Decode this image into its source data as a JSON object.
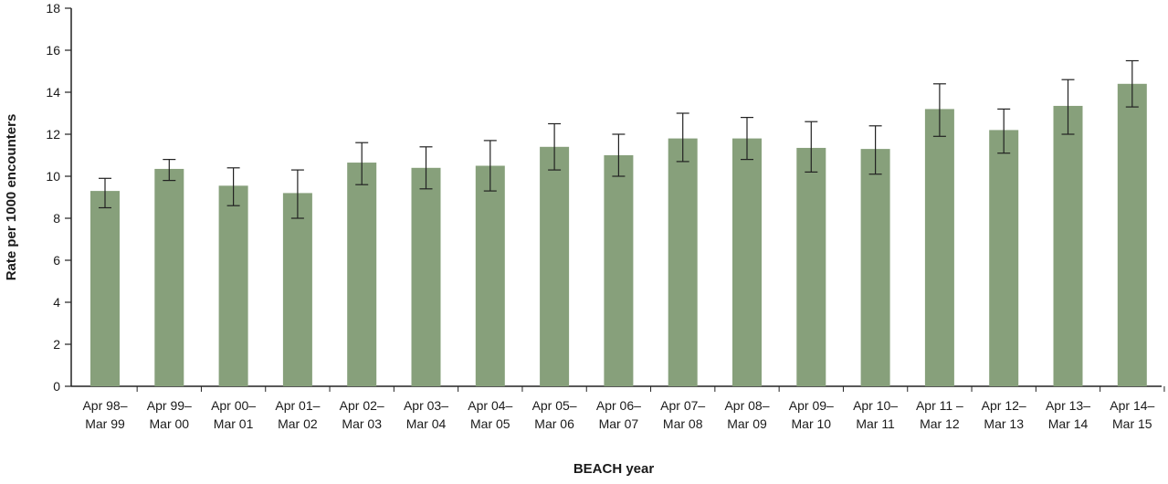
{
  "chart_data": {
    "type": "bar",
    "title": "",
    "xlabel": "BEACH year",
    "ylabel": "Rate per 1000 encounters",
    "ylim": [
      0,
      18
    ],
    "yticks": [
      "0",
      "2",
      "4",
      "6",
      "8",
      "10",
      "12",
      "14",
      "16",
      "18"
    ],
    "grid": false,
    "bar_color": "#87a07b",
    "categories": [
      [
        "Apr 98–",
        "Mar 99"
      ],
      [
        "Apr 99–",
        "Mar 00"
      ],
      [
        "Apr 00–",
        "Mar 01"
      ],
      [
        "Apr 01–",
        "Mar 02"
      ],
      [
        "Apr 02–",
        "Mar 03"
      ],
      [
        "Apr 03–",
        "Mar 04"
      ],
      [
        "Apr 04–",
        "Mar 05"
      ],
      [
        "Apr 05–",
        "Mar 06"
      ],
      [
        "Apr 06–",
        "Mar 07"
      ],
      [
        "Apr 07–",
        "Mar 08"
      ],
      [
        "Apr 08–",
        "Mar 09"
      ],
      [
        "Apr 09–",
        "Mar 10"
      ],
      [
        "Apr 10–",
        "Mar 11"
      ],
      [
        "Apr 11 –",
        "Mar 12"
      ],
      [
        "Apr 12–",
        "Mar 13"
      ],
      [
        "Apr  13–",
        "Mar 14"
      ],
      [
        "Apr 14–",
        "Mar 15"
      ]
    ],
    "values": [
      9.3,
      10.35,
      9.55,
      9.2,
      10.65,
      10.4,
      10.5,
      11.4,
      11.0,
      11.8,
      11.8,
      11.35,
      11.3,
      13.2,
      12.2,
      13.35,
      14.4
    ],
    "error_low": [
      8.5,
      9.8,
      8.6,
      8.0,
      9.6,
      9.4,
      9.3,
      10.3,
      10.0,
      10.7,
      10.8,
      10.2,
      10.1,
      11.9,
      11.1,
      12.0,
      13.3
    ],
    "error_high": [
      9.9,
      10.8,
      10.4,
      10.3,
      11.6,
      11.4,
      11.7,
      12.5,
      12.0,
      13.0,
      12.8,
      12.6,
      12.4,
      14.4,
      13.2,
      14.6,
      15.5
    ]
  }
}
